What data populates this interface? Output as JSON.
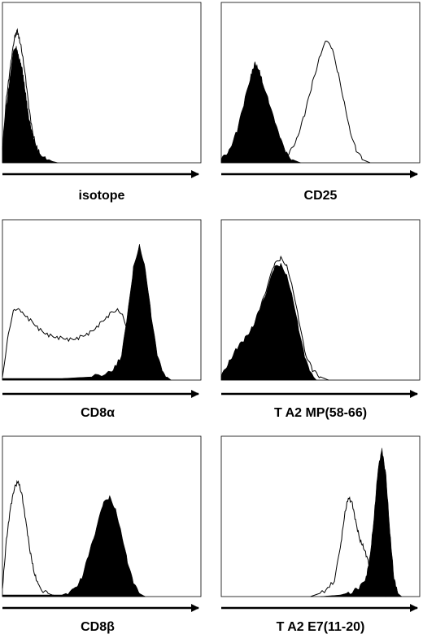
{
  "chart_data": [
    {
      "type": "histogram",
      "xlabel": "isotope",
      "filled_series": [
        [
          0.0,
          0.1
        ],
        [
          0.02,
          0.35
        ],
        [
          0.04,
          0.55
        ],
        [
          0.055,
          0.7
        ],
        [
          0.07,
          0.72
        ],
        [
          0.085,
          0.65
        ],
        [
          0.1,
          0.58
        ],
        [
          0.115,
          0.45
        ],
        [
          0.13,
          0.3
        ],
        [
          0.15,
          0.18
        ],
        [
          0.17,
          0.1
        ],
        [
          0.19,
          0.06
        ],
        [
          0.22,
          0.03
        ],
        [
          0.25,
          0.01
        ],
        [
          0.28,
          0.0
        ]
      ],
      "open_series": [
        [
          0.0,
          0.08
        ],
        [
          0.02,
          0.4
        ],
        [
          0.04,
          0.6
        ],
        [
          0.06,
          0.78
        ],
        [
          0.075,
          0.82
        ],
        [
          0.09,
          0.75
        ],
        [
          0.11,
          0.6
        ],
        [
          0.13,
          0.38
        ],
        [
          0.15,
          0.2
        ],
        [
          0.17,
          0.1
        ],
        [
          0.19,
          0.05
        ],
        [
          0.22,
          0.02
        ],
        [
          0.25,
          0.0
        ]
      ]
    },
    {
      "type": "histogram",
      "xlabel": "CD25",
      "filled_series": [
        [
          0.0,
          0.02
        ],
        [
          0.04,
          0.08
        ],
        [
          0.08,
          0.2
        ],
        [
          0.12,
          0.4
        ],
        [
          0.15,
          0.55
        ],
        [
          0.17,
          0.62
        ],
        [
          0.19,
          0.58
        ],
        [
          0.21,
          0.5
        ],
        [
          0.24,
          0.38
        ],
        [
          0.27,
          0.25
        ],
        [
          0.3,
          0.14
        ],
        [
          0.33,
          0.06
        ],
        [
          0.36,
          0.02
        ],
        [
          0.4,
          0.0
        ]
      ],
      "open_series": [
        [
          0.3,
          0.0
        ],
        [
          0.34,
          0.05
        ],
        [
          0.38,
          0.15
        ],
        [
          0.42,
          0.3
        ],
        [
          0.46,
          0.5
        ],
        [
          0.5,
          0.68
        ],
        [
          0.53,
          0.76
        ],
        [
          0.56,
          0.7
        ],
        [
          0.59,
          0.55
        ],
        [
          0.62,
          0.38
        ],
        [
          0.65,
          0.2
        ],
        [
          0.68,
          0.08
        ],
        [
          0.71,
          0.02
        ],
        [
          0.75,
          0.0
        ]
      ]
    },
    {
      "type": "histogram",
      "xlabel": "CD8α",
      "filled_series": [
        [
          0.0,
          0.01
        ],
        [
          0.3,
          0.01
        ],
        [
          0.45,
          0.02
        ],
        [
          0.55,
          0.05
        ],
        [
          0.6,
          0.15
        ],
        [
          0.63,
          0.4
        ],
        [
          0.66,
          0.7
        ],
        [
          0.69,
          0.85
        ],
        [
          0.72,
          0.7
        ],
        [
          0.75,
          0.4
        ],
        [
          0.78,
          0.15
        ],
        [
          0.81,
          0.04
        ],
        [
          0.85,
          0.0
        ]
      ],
      "open_series": [
        [
          0.0,
          0.02
        ],
        [
          0.03,
          0.3
        ],
        [
          0.06,
          0.45
        ],
        [
          0.1,
          0.42
        ],
        [
          0.15,
          0.36
        ],
        [
          0.2,
          0.3
        ],
        [
          0.25,
          0.27
        ],
        [
          0.3,
          0.26
        ],
        [
          0.35,
          0.25
        ],
        [
          0.4,
          0.27
        ],
        [
          0.45,
          0.3
        ],
        [
          0.5,
          0.36
        ],
        [
          0.55,
          0.42
        ],
        [
          0.58,
          0.45
        ],
        [
          0.61,
          0.4
        ],
        [
          0.64,
          0.25
        ],
        [
          0.67,
          0.1
        ],
        [
          0.7,
          0.03
        ],
        [
          0.73,
          0.0
        ]
      ]
    },
    {
      "type": "histogram",
      "xlabel": "T A2 MP(58-66)",
      "filled_series": [
        [
          0.0,
          0.02
        ],
        [
          0.04,
          0.12
        ],
        [
          0.08,
          0.2
        ],
        [
          0.12,
          0.26
        ],
        [
          0.16,
          0.34
        ],
        [
          0.2,
          0.45
        ],
        [
          0.24,
          0.6
        ],
        [
          0.27,
          0.7
        ],
        [
          0.3,
          0.72
        ],
        [
          0.33,
          0.66
        ],
        [
          0.36,
          0.52
        ],
        [
          0.39,
          0.32
        ],
        [
          0.42,
          0.14
        ],
        [
          0.45,
          0.04
        ],
        [
          0.48,
          0.0
        ]
      ],
      "open_series": [
        [
          0.0,
          0.02
        ],
        [
          0.04,
          0.1
        ],
        [
          0.08,
          0.18
        ],
        [
          0.12,
          0.25
        ],
        [
          0.16,
          0.33
        ],
        [
          0.2,
          0.46
        ],
        [
          0.24,
          0.62
        ],
        [
          0.27,
          0.72
        ],
        [
          0.3,
          0.76
        ],
        [
          0.33,
          0.72
        ],
        [
          0.36,
          0.58
        ],
        [
          0.39,
          0.38
        ],
        [
          0.42,
          0.18
        ],
        [
          0.46,
          0.06
        ],
        [
          0.5,
          0.02
        ],
        [
          0.54,
          0.0
        ]
      ]
    },
    {
      "type": "histogram",
      "xlabel": "CD8β",
      "filled_series": [
        [
          0.0,
          0.01
        ],
        [
          0.3,
          0.01
        ],
        [
          0.36,
          0.04
        ],
        [
          0.4,
          0.12
        ],
        [
          0.44,
          0.28
        ],
        [
          0.48,
          0.46
        ],
        [
          0.51,
          0.58
        ],
        [
          0.54,
          0.62
        ],
        [
          0.57,
          0.55
        ],
        [
          0.6,
          0.4
        ],
        [
          0.63,
          0.22
        ],
        [
          0.66,
          0.08
        ],
        [
          0.69,
          0.02
        ],
        [
          0.72,
          0.0
        ]
      ],
      "open_series": [
        [
          0.0,
          0.05
        ],
        [
          0.02,
          0.35
        ],
        [
          0.04,
          0.55
        ],
        [
          0.06,
          0.68
        ],
        [
          0.08,
          0.72
        ],
        [
          0.1,
          0.62
        ],
        [
          0.12,
          0.45
        ],
        [
          0.14,
          0.28
        ],
        [
          0.16,
          0.15
        ],
        [
          0.18,
          0.07
        ],
        [
          0.21,
          0.03
        ],
        [
          0.25,
          0.01
        ],
        [
          0.3,
          0.0
        ]
      ]
    },
    {
      "type": "histogram",
      "xlabel": "T A2 E7(11-20)",
      "filled_series": [
        [
          0.5,
          0.0
        ],
        [
          0.6,
          0.01
        ],
        [
          0.66,
          0.03
        ],
        [
          0.7,
          0.06
        ],
        [
          0.73,
          0.12
        ],
        [
          0.75,
          0.25
        ],
        [
          0.77,
          0.5
        ],
        [
          0.79,
          0.8
        ],
        [
          0.81,
          0.92
        ],
        [
          0.83,
          0.75
        ],
        [
          0.85,
          0.4
        ],
        [
          0.87,
          0.12
        ],
        [
          0.89,
          0.02
        ],
        [
          0.91,
          0.0
        ]
      ],
      "open_series": [
        [
          0.45,
          0.0
        ],
        [
          0.52,
          0.03
        ],
        [
          0.57,
          0.1
        ],
        [
          0.6,
          0.3
        ],
        [
          0.62,
          0.5
        ],
        [
          0.64,
          0.62
        ],
        [
          0.66,
          0.58
        ],
        [
          0.68,
          0.45
        ],
        [
          0.7,
          0.35
        ],
        [
          0.72,
          0.3
        ],
        [
          0.74,
          0.22
        ],
        [
          0.76,
          0.12
        ],
        [
          0.78,
          0.05
        ],
        [
          0.8,
          0.01
        ],
        [
          0.83,
          0.0
        ]
      ]
    }
  ]
}
